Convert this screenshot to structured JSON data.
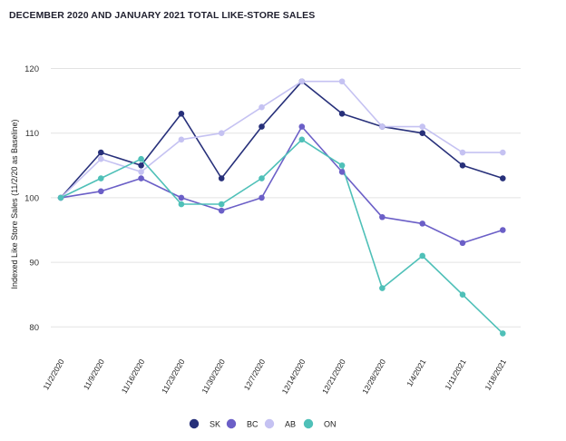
{
  "chart_data": {
    "type": "line",
    "title": "DECEMBER 2020 AND JANUARY 2021 TOTAL LIKE-STORE SALES",
    "xlabel": "",
    "ylabel": "Indexed Like Store Sales (11/2/20 as Baseline)",
    "ylim": [
      76,
      120
    ],
    "yticks": [
      80,
      90,
      100,
      110,
      120
    ],
    "grid": true,
    "legend_position": "bottom",
    "categories": [
      "11/2/2020",
      "11/9/2020",
      "11/16/2020",
      "11/23/2020",
      "11/30/2020",
      "12/7/2020",
      "12/14/2020",
      "12/21/2020",
      "12/28/2020",
      "1/4/2021",
      "1/11/2021",
      "1/18/2021"
    ],
    "series": [
      {
        "name": "SK",
        "color": "#27307a",
        "values": [
          100,
          107,
          105,
          113,
          103,
          111,
          118,
          113,
          111,
          110,
          105,
          103
        ]
      },
      {
        "name": "BC",
        "color": "#6b5fc7",
        "values": [
          100,
          101,
          103,
          100,
          98,
          100,
          111,
          104,
          97,
          96,
          93,
          95
        ]
      },
      {
        "name": "AB",
        "color": "#c5c2f2",
        "values": [
          100,
          106,
          104,
          109,
          110,
          114,
          118,
          118,
          111,
          111,
          107,
          107
        ]
      },
      {
        "name": "ON",
        "color": "#4fc0b8",
        "values": [
          100,
          103,
          106,
          99,
          99,
          103,
          109,
          105,
          86,
          91,
          85,
          79
        ]
      }
    ]
  }
}
